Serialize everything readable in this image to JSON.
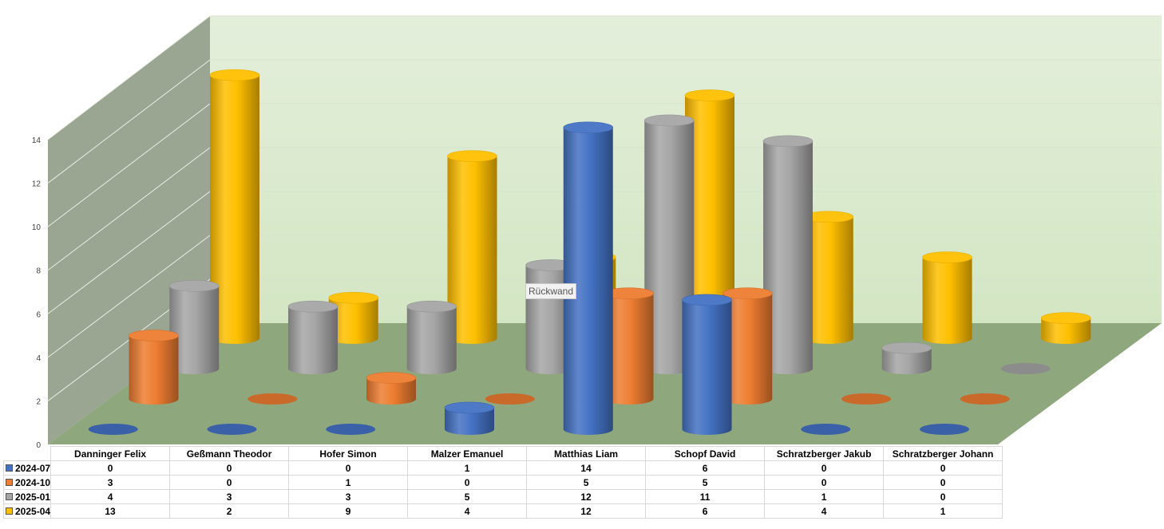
{
  "chart_data": {
    "type": "bar",
    "subtype": "3d-cylinder",
    "title": "",
    "categories": [
      "Danninger Felix",
      "Geßmann Theodor",
      "Hofer Simon",
      "Malzer Emanuel",
      "Matthias Liam",
      "Schopf David",
      "Schratzberger Jakub",
      "Schratzberger Johann"
    ],
    "series": [
      {
        "name": "2024-07",
        "color": "#4472c4",
        "values": [
          0,
          0,
          0,
          1,
          14,
          6,
          0,
          0
        ]
      },
      {
        "name": "2024-10",
        "color": "#ed7d31",
        "values": [
          3,
          0,
          1,
          0,
          5,
          5,
          0,
          0
        ]
      },
      {
        "name": "2025-01",
        "color": "#a5a5a5",
        "values": [
          4,
          3,
          3,
          5,
          12,
          11,
          1,
          0
        ]
      },
      {
        "name": "2025-04",
        "color": "#ffc000",
        "values": [
          13,
          2,
          9,
          4,
          12,
          6,
          4,
          1
        ]
      }
    ],
    "yticks": [
      "0",
      "2",
      "4",
      "6",
      "8",
      "10",
      "12",
      "14"
    ],
    "ylim": [
      0,
      14
    ],
    "grid": true,
    "legend": "data-table",
    "back_wall_color": "#e4efdb",
    "side_wall_color": "#9aa592",
    "floor_color": "#8fa77c"
  },
  "tooltip": "Rückwand"
}
